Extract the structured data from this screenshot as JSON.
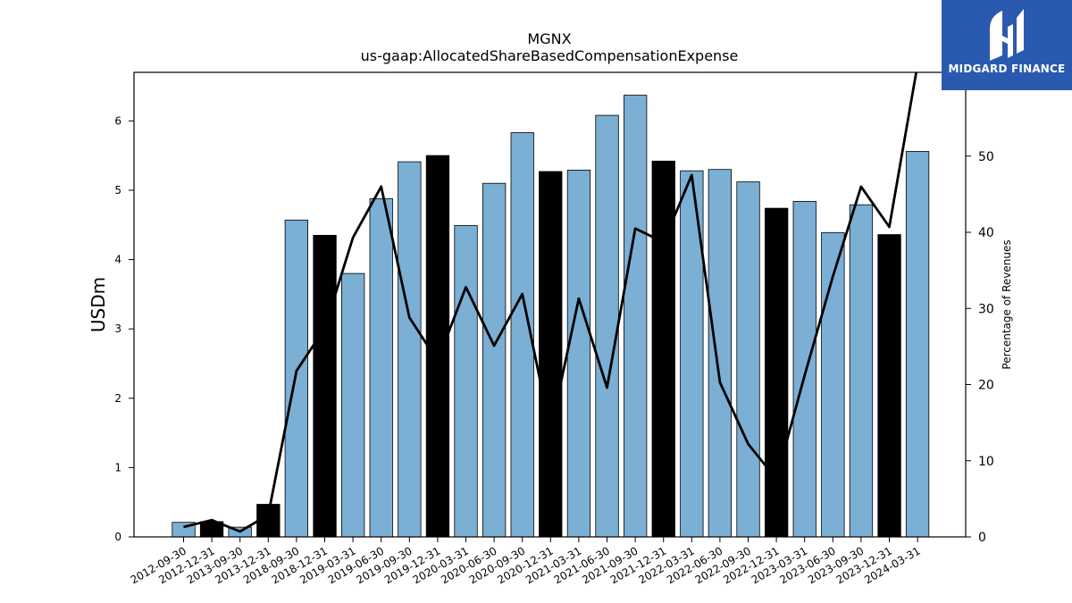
{
  "chart_data": {
    "type": "bar",
    "title": "MGNX",
    "subtitle": "us-gaap:AllocatedShareBasedCompensationExpense",
    "ylabel": "USDm",
    "y2label": "Percentage of Revenues",
    "categories": [
      "2012-09-30",
      "2012-12-31",
      "2013-09-30",
      "2013-12-31",
      "2018-09-30",
      "2018-12-31",
      "2019-03-31",
      "2019-06-30",
      "2019-09-30",
      "2019-12-31",
      "2020-03-31",
      "2020-06-30",
      "2020-09-30",
      "2020-12-31",
      "2021-03-31",
      "2021-06-30",
      "2021-09-30",
      "2021-12-31",
      "2022-03-31",
      "2022-06-30",
      "2022-09-30",
      "2022-12-31",
      "2023-03-31",
      "2023-06-30",
      "2023-09-30",
      "2023-12-31",
      "2024-03-31"
    ],
    "series": [
      {
        "type": "bar",
        "axis": "left",
        "values": [
          0.21,
          0.22,
          0.14,
          0.47,
          4.57,
          4.35,
          3.8,
          4.88,
          5.41,
          5.5,
          4.49,
          5.1,
          5.83,
          5.27,
          5.29,
          6.08,
          6.37,
          5.42,
          5.28,
          5.3,
          5.12,
          4.74,
          4.84,
          4.39,
          4.79,
          4.36,
          5.56
        ],
        "colors": [
          "#7bafd4",
          "#000000",
          "#7bafd4",
          "#000000",
          "#7bafd4",
          "#000000",
          "#7bafd4",
          "#7bafd4",
          "#7bafd4",
          "#000000",
          "#7bafd4",
          "#7bafd4",
          "#7bafd4",
          "#000000",
          "#7bafd4",
          "#7bafd4",
          "#7bafd4",
          "#000000",
          "#7bafd4",
          "#7bafd4",
          "#7bafd4",
          "#000000",
          "#7bafd4",
          "#7bafd4",
          "#7bafd4",
          "#000000",
          "#7bafd4"
        ]
      },
      {
        "type": "line",
        "axis": "right",
        "color": "#000000",
        "values": [
          1.3,
          2.2,
          0.7,
          2.9,
          21.8,
          27.4,
          39.3,
          46.0,
          28.8,
          23.1,
          32.8,
          25.1,
          31.9,
          13.9,
          31.3,
          19.6,
          40.5,
          38.7,
          47.5,
          20.3,
          12.2,
          7.6,
          21.2,
          34.2,
          46.0,
          40.7,
          62.0
        ]
      }
    ],
    "ylim": [
      0,
      6.7
    ],
    "y2lim": [
      0,
      61.0
    ],
    "yticks": [
      0,
      1,
      2,
      3,
      4,
      5,
      6
    ],
    "y2ticks": [
      0,
      10,
      20,
      30,
      40,
      50
    ],
    "grid": false,
    "legend": "none"
  },
  "logo": {
    "text": "MIDGARD FINANCE",
    "background": "#2a5ab0"
  }
}
